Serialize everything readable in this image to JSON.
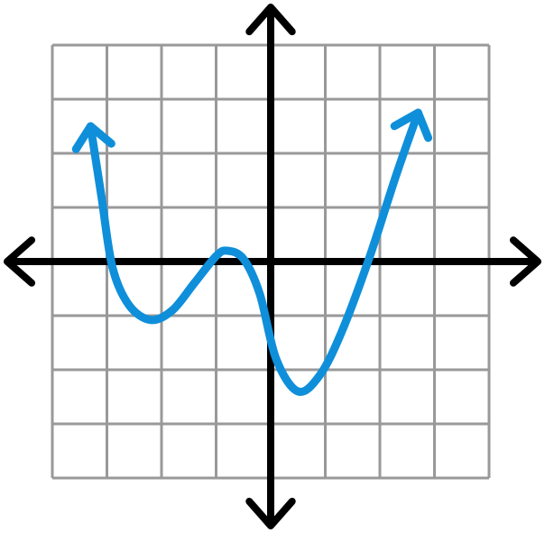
{
  "chart_data": {
    "type": "line",
    "x": [
      -3.3,
      -3.1,
      -2.9,
      -2.6,
      -2.2,
      -1.8,
      -1.4,
      -1.0,
      -0.8,
      -0.5,
      -0.2,
      0.1,
      0.5,
      0.9,
      1.3,
      1.8,
      2.3,
      2.7
    ],
    "values": [
      2.5,
      1.2,
      -0.1,
      -0.8,
      -1.08,
      -0.9,
      -0.4,
      0.1,
      0.2,
      0.05,
      -0.6,
      -1.8,
      -2.4,
      -2.1,
      -1.3,
      0.05,
      1.6,
      2.75
    ],
    "color": "#0f8fda",
    "xlim": [
      -4,
      4
    ],
    "ylim": [
      -4,
      4
    ],
    "xticks": [
      -4,
      -3,
      -2,
      -1,
      0,
      1,
      2,
      3,
      4
    ],
    "yticks": [
      -4,
      -3,
      -2,
      -1,
      0,
      1,
      2,
      3,
      4
    ],
    "grid": true
  }
}
